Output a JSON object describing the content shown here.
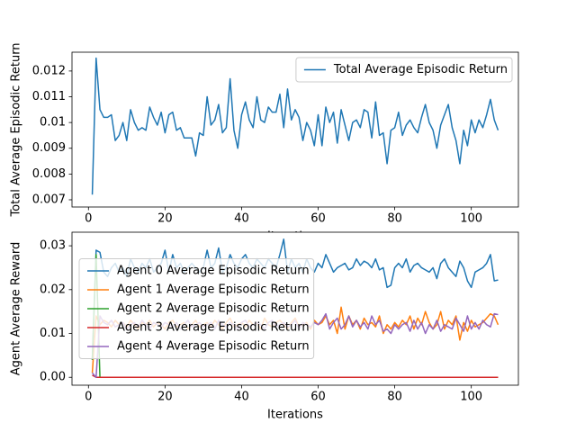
{
  "chart_data": [
    {
      "type": "line",
      "ylabel": "Total Average Episodic Return",
      "xlabel": "Iterations",
      "x": [
        1,
        2,
        3,
        4,
        5,
        6,
        7,
        8,
        9,
        10,
        11,
        12,
        13,
        14,
        15,
        16,
        17,
        18,
        19,
        20,
        21,
        22,
        23,
        24,
        25,
        26,
        27,
        28,
        29,
        30,
        31,
        32,
        33,
        34,
        35,
        36,
        37,
        38,
        39,
        40,
        41,
        42,
        43,
        44,
        45,
        46,
        47,
        48,
        49,
        50,
        51,
        52,
        53,
        54,
        55,
        56,
        57,
        58,
        59,
        60,
        61,
        62,
        63,
        64,
        65,
        66,
        67,
        68,
        69,
        70,
        71,
        72,
        73,
        74,
        75,
        76,
        77,
        78,
        79,
        80,
        81,
        82,
        83,
        84,
        85,
        86,
        87,
        88,
        89,
        90,
        91,
        92,
        93,
        94,
        95,
        96,
        97,
        98,
        99,
        100,
        101,
        102,
        103,
        104,
        105,
        106,
        107
      ],
      "series": [
        {
          "name": "Total Average Episodic Return",
          "color": "#1f77b4",
          "values": [
            0.0072,
            0.0125,
            0.0105,
            0.0102,
            0.0102,
            0.0103,
            0.0093,
            0.0095,
            0.01,
            0.0093,
            0.0105,
            0.01,
            0.0097,
            0.0098,
            0.0097,
            0.0106,
            0.0102,
            0.0099,
            0.0104,
            0.0096,
            0.0103,
            0.0104,
            0.0097,
            0.0098,
            0.0094,
            0.0094,
            0.0094,
            0.0087,
            0.0096,
            0.0095,
            0.011,
            0.0099,
            0.0101,
            0.0107,
            0.0096,
            0.0098,
            0.0117,
            0.0097,
            0.009,
            0.0103,
            0.0108,
            0.0101,
            0.0098,
            0.011,
            0.0101,
            0.01,
            0.0106,
            0.0104,
            0.0104,
            0.0111,
            0.0098,
            0.0113,
            0.0101,
            0.0105,
            0.0102,
            0.0093,
            0.01,
            0.0097,
            0.0091,
            0.0103,
            0.0091,
            0.0106,
            0.01,
            0.0104,
            0.0092,
            0.0105,
            0.0099,
            0.0093,
            0.01,
            0.0101,
            0.0098,
            0.0105,
            0.0104,
            0.0094,
            0.0108,
            0.0095,
            0.0096,
            0.0084,
            0.0097,
            0.0098,
            0.0104,
            0.0095,
            0.0099,
            0.0101,
            0.0098,
            0.0096,
            0.0102,
            0.0107,
            0.01,
            0.0097,
            0.009,
            0.0099,
            0.0103,
            0.0107,
            0.0098,
            0.0093,
            0.0084,
            0.0097,
            0.0091,
            0.0101,
            0.0096,
            0.0101,
            0.0098,
            0.0103,
            0.0109,
            0.0101,
            0.0097
          ]
        }
      ],
      "xlim": [
        -4.3,
        112.3
      ],
      "xticks": [
        0,
        20,
        40,
        60,
        80,
        100
      ],
      "ylim": [
        0.00672,
        0.01273
      ],
      "yticks": [
        0.007,
        0.008,
        0.009,
        0.01,
        0.011,
        0.012
      ],
      "legend": "upper right",
      "grid": false
    },
    {
      "type": "line",
      "ylabel": "Agent Average Reward",
      "xlabel": "Iterations",
      "x": [
        1,
        2,
        3,
        4,
        5,
        6,
        7,
        8,
        9,
        10,
        11,
        12,
        13,
        14,
        15,
        16,
        17,
        18,
        19,
        20,
        21,
        22,
        23,
        24,
        25,
        26,
        27,
        28,
        29,
        30,
        31,
        32,
        33,
        34,
        35,
        36,
        37,
        38,
        39,
        40,
        41,
        42,
        43,
        44,
        45,
        46,
        47,
        48,
        49,
        50,
        51,
        52,
        53,
        54,
        55,
        56,
        57,
        58,
        59,
        60,
        61,
        62,
        63,
        64,
        65,
        66,
        67,
        68,
        69,
        70,
        71,
        72,
        73,
        74,
        75,
        76,
        77,
        78,
        79,
        80,
        81,
        82,
        83,
        84,
        85,
        86,
        87,
        88,
        89,
        90,
        91,
        92,
        93,
        94,
        95,
        96,
        97,
        98,
        99,
        100,
        101,
        102,
        103,
        104,
        105,
        106,
        107
      ],
      "series": [
        {
          "name": "Agent 0 Average Episodic Return",
          "color": "#1f77b4",
          "values": [
            0.004,
            0.029,
            0.0285,
            0.024,
            0.023,
            0.025,
            0.026,
            0.024,
            0.025,
            0.023,
            0.027,
            0.025,
            0.024,
            0.026,
            0.025,
            0.027,
            0.024,
            0.025,
            0.026,
            0.029,
            0.024,
            0.028,
            0.025,
            0.026,
            0.024,
            0.025,
            0.026,
            0.025,
            0.024,
            0.025,
            0.029,
            0.025,
            0.026,
            0.0295,
            0.024,
            0.025,
            0.028,
            0.026,
            0.025,
            0.027,
            0.028,
            0.026,
            0.025,
            0.027,
            0.026,
            0.025,
            0.027,
            0.026,
            0.025,
            0.028,
            0.0315,
            0.024,
            0.027,
            0.025,
            0.026,
            0.024,
            0.027,
            0.025,
            0.024,
            0.026,
            0.025,
            0.028,
            0.026,
            0.024,
            0.025,
            0.0255,
            0.026,
            0.0245,
            0.025,
            0.027,
            0.0255,
            0.0265,
            0.026,
            0.025,
            0.027,
            0.0245,
            0.025,
            0.0205,
            0.021,
            0.025,
            0.026,
            0.025,
            0.027,
            0.024,
            0.0255,
            0.026,
            0.025,
            0.0245,
            0.024,
            0.025,
            0.0225,
            0.026,
            0.027,
            0.025,
            0.024,
            0.023,
            0.0265,
            0.025,
            0.022,
            0.0205,
            0.024,
            0.0245,
            0.025,
            0.026,
            0.028,
            0.022,
            0.0222
          ]
        },
        {
          "name": "Agent 1 Average Episodic Return",
          "color": "#ff7f0e",
          "values": [
            0.001,
            0.014,
            0.012,
            0.013,
            0.0125,
            0.0115,
            0.013,
            0.012,
            0.0125,
            0.0115,
            0.013,
            0.012,
            0.011,
            0.0125,
            0.012,
            0.013,
            0.0115,
            0.0125,
            0.012,
            0.011,
            0.0125,
            0.013,
            0.0115,
            0.012,
            0.0125,
            0.011,
            0.012,
            0.013,
            0.0115,
            0.012,
            0.0125,
            0.0115,
            0.013,
            0.012,
            0.011,
            0.0125,
            0.0135,
            0.0115,
            0.012,
            0.0125,
            0.0115,
            0.013,
            0.012,
            0.0125,
            0.011,
            0.0135,
            0.012,
            0.0115,
            0.0125,
            0.013,
            0.012,
            0.011,
            0.0125,
            0.0135,
            0.0115,
            0.012,
            0.0125,
            0.011,
            0.013,
            0.012,
            0.0125,
            0.014,
            0.012,
            0.013,
            0.01,
            0.016,
            0.011,
            0.014,
            0.012,
            0.013,
            0.011,
            0.0135,
            0.012,
            0.0125,
            0.0115,
            0.014,
            0.01,
            0.012,
            0.011,
            0.0125,
            0.0115,
            0.013,
            0.012,
            0.014,
            0.011,
            0.0135,
            0.012,
            0.015,
            0.0125,
            0.011,
            0.012,
            0.015,
            0.011,
            0.013,
            0.012,
            0.014,
            0.0085,
            0.0125,
            0.0105,
            0.013,
            0.0115,
            0.012,
            0.0125,
            0.0135,
            0.0145,
            0.014,
            0.012
          ]
        },
        {
          "name": "Agent 2 Average Episodic Return",
          "color": "#2ca02c",
          "values": [
            0.004,
            0.028,
            0,
            0,
            0,
            0,
            0,
            0,
            0,
            0,
            0,
            0,
            0,
            0,
            0,
            0,
            0,
            0,
            0,
            0,
            0,
            0,
            0,
            0,
            0,
            0,
            0,
            0,
            0,
            0,
            0,
            0,
            0,
            0,
            0,
            0,
            0,
            0,
            0,
            0,
            0,
            0,
            0,
            0,
            0,
            0,
            0,
            0,
            0,
            0,
            0,
            0,
            0,
            0,
            0,
            0,
            0,
            0,
            0,
            0,
            0,
            0,
            0,
            0,
            0,
            0,
            0,
            0,
            0,
            0,
            0,
            0,
            0,
            0,
            0,
            0,
            0,
            0,
            0,
            0,
            0,
            0,
            0,
            0,
            0,
            0,
            0,
            0,
            0,
            0,
            0,
            0,
            0,
            0,
            0,
            0,
            0,
            0,
            0,
            0,
            0,
            0,
            0,
            0,
            0,
            0,
            0
          ]
        },
        {
          "name": "Agent 3 Average Episodic Return",
          "color": "#d62728",
          "values": [
            0.0005,
            0,
            0,
            0,
            0,
            0,
            0,
            0,
            0,
            0,
            0,
            0,
            0,
            0,
            0,
            0,
            0,
            0,
            0,
            0,
            0,
            0,
            0,
            0,
            0,
            0,
            0,
            0,
            0,
            0,
            0,
            0,
            0,
            0,
            0,
            0,
            0,
            0,
            0,
            0,
            0,
            0,
            0,
            0,
            0,
            0,
            0,
            0,
            0,
            0,
            0,
            0,
            0,
            0,
            0,
            0,
            0,
            0,
            0,
            0,
            0,
            0,
            0,
            0,
            0,
            0,
            0,
            0,
            0,
            0,
            0,
            0,
            0,
            0,
            0,
            0,
            0,
            0,
            0,
            0,
            0,
            0,
            0,
            0,
            0,
            0,
            0,
            0,
            0,
            0,
            0,
            0,
            0,
            0,
            0,
            0,
            0,
            0,
            0,
            0,
            0,
            0,
            0,
            0,
            0,
            0,
            0
          ]
        },
        {
          "name": "Agent 4 Average Episodic Return",
          "color": "#9467bd",
          "values": [
            0.001,
            0.0,
            0.014,
            0.0125,
            0.012,
            0.013,
            0.0115,
            0.012,
            0.0125,
            0.011,
            0.012,
            0.0125,
            0.0115,
            0.013,
            0.012,
            0.011,
            0.0125,
            0.012,
            0.0115,
            0.0125,
            0.012,
            0.0115,
            0.0125,
            0.011,
            0.012,
            0.013,
            0.0115,
            0.012,
            0.0125,
            0.0115,
            0.012,
            0.0125,
            0.011,
            0.013,
            0.012,
            0.0115,
            0.0125,
            0.012,
            0.011,
            0.0125,
            0.013,
            0.0115,
            0.012,
            0.0125,
            0.012,
            0.011,
            0.0125,
            0.013,
            0.0115,
            0.012,
            0.0125,
            0.0115,
            0.012,
            0.013,
            0.011,
            0.0125,
            0.012,
            0.0115,
            0.0125,
            0.012,
            0.013,
            0.0145,
            0.011,
            0.0125,
            0.0135,
            0.011,
            0.012,
            0.014,
            0.0115,
            0.013,
            0.0115,
            0.0125,
            0.011,
            0.014,
            0.012,
            0.013,
            0.0105,
            0.011,
            0.01,
            0.012,
            0.011,
            0.012,
            0.0125,
            0.0105,
            0.013,
            0.011,
            0.0125,
            0.01,
            0.012,
            0.011,
            0.013,
            0.0105,
            0.012,
            0.0115,
            0.011,
            0.0135,
            0.012,
            0.0105,
            0.014,
            0.011,
            0.0125,
            0.011,
            0.013,
            0.012,
            0.0115,
            0.0145,
            0.0143
          ]
        }
      ],
      "xlim": [
        -4.3,
        112.3
      ],
      "xticks": [
        0,
        20,
        40,
        60,
        80,
        100
      ],
      "ylim": [
        -0.0018,
        0.0331
      ],
      "yticks": [
        {
          "value": 0,
          "label": "0.00"
        },
        {
          "value": 0.01,
          "label": "0.01"
        },
        {
          "value": 0.02,
          "label": "0.02"
        },
        {
          "value": 0.03,
          "label": "0.03"
        }
      ],
      "legend": "center left",
      "grid": false
    }
  ]
}
